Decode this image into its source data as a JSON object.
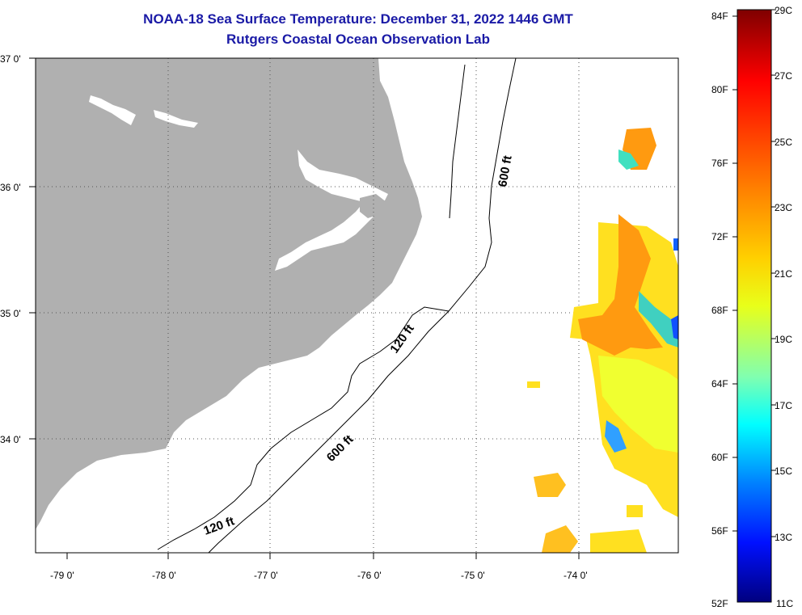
{
  "title": "NOAA-18 Sea Surface Temperature:  December 31, 2022 1446 GMT",
  "subtitle": "Rutgers Coastal Ocean Observation Lab",
  "lat_labels": [
    "37 0'",
    "36 0'",
    "35 0'",
    "34 0'"
  ],
  "lon_labels": [
    "-79 0'",
    "-78 0'",
    "-77 0'",
    "-76 0'",
    "-75 0'",
    "-74 0'"
  ],
  "contours": {
    "c600_upper": "600 ft",
    "c120_mid": "120 ft",
    "c600_lower": "600 ft",
    "c120_lower": "120 ft"
  },
  "colorbar": {
    "fahrenheit": [
      "84F",
      "80F",
      "76F",
      "72F",
      "68F",
      "64F",
      "60F",
      "56F",
      "52F"
    ],
    "celsius": [
      "29C",
      "27C",
      "25C",
      "23C",
      "21C",
      "19C",
      "17C",
      "15C",
      "13C",
      "11C"
    ],
    "colors": [
      "#800000",
      "#ff0000",
      "#ff8000",
      "#ffff00",
      "#00ffff",
      "#0000ff",
      "#000080"
    ]
  },
  "colors": {
    "land": "#b0b0b0",
    "title": "#1a1aa6"
  }
}
